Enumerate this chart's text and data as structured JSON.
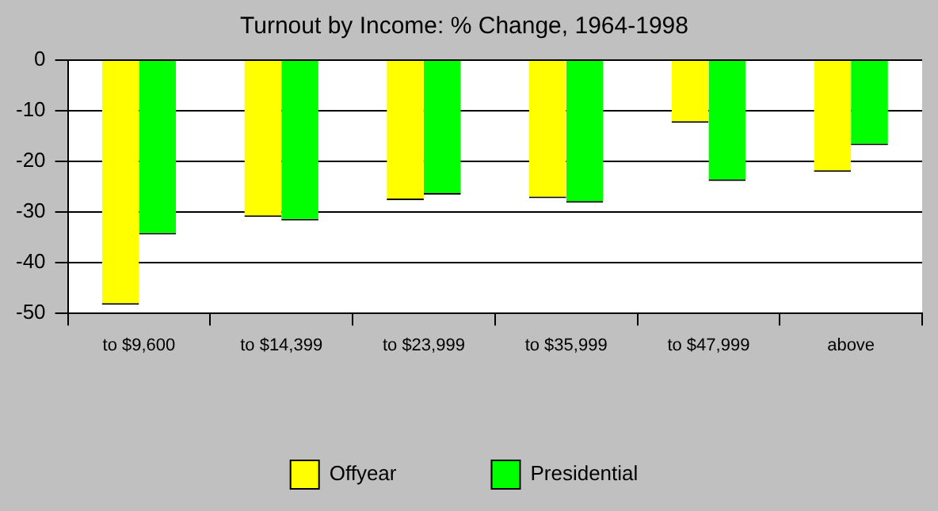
{
  "chart_data": {
    "type": "bar",
    "title": "Turnout by Income: % Change, 1964-1998",
    "categories": [
      "to $9,600",
      "to $14,399",
      "to $23,999",
      "to $35,999",
      "to $47,999",
      "above"
    ],
    "series": [
      {
        "name": "Offyear",
        "color": "#ffff00",
        "values": [
          -48.4,
          -31.0,
          -27.7,
          -27.3,
          -12.4,
          -22.1
        ]
      },
      {
        "name": "Presidential",
        "color": "#00ff00",
        "values": [
          -34.5,
          -31.7,
          -26.6,
          -28.2,
          -23.9,
          -16.8
        ]
      }
    ],
    "ylim": [
      -50,
      0
    ],
    "yticks": [
      -50,
      -40,
      -30,
      -20,
      -10,
      0
    ],
    "grid": "y",
    "legend": "bottom"
  }
}
